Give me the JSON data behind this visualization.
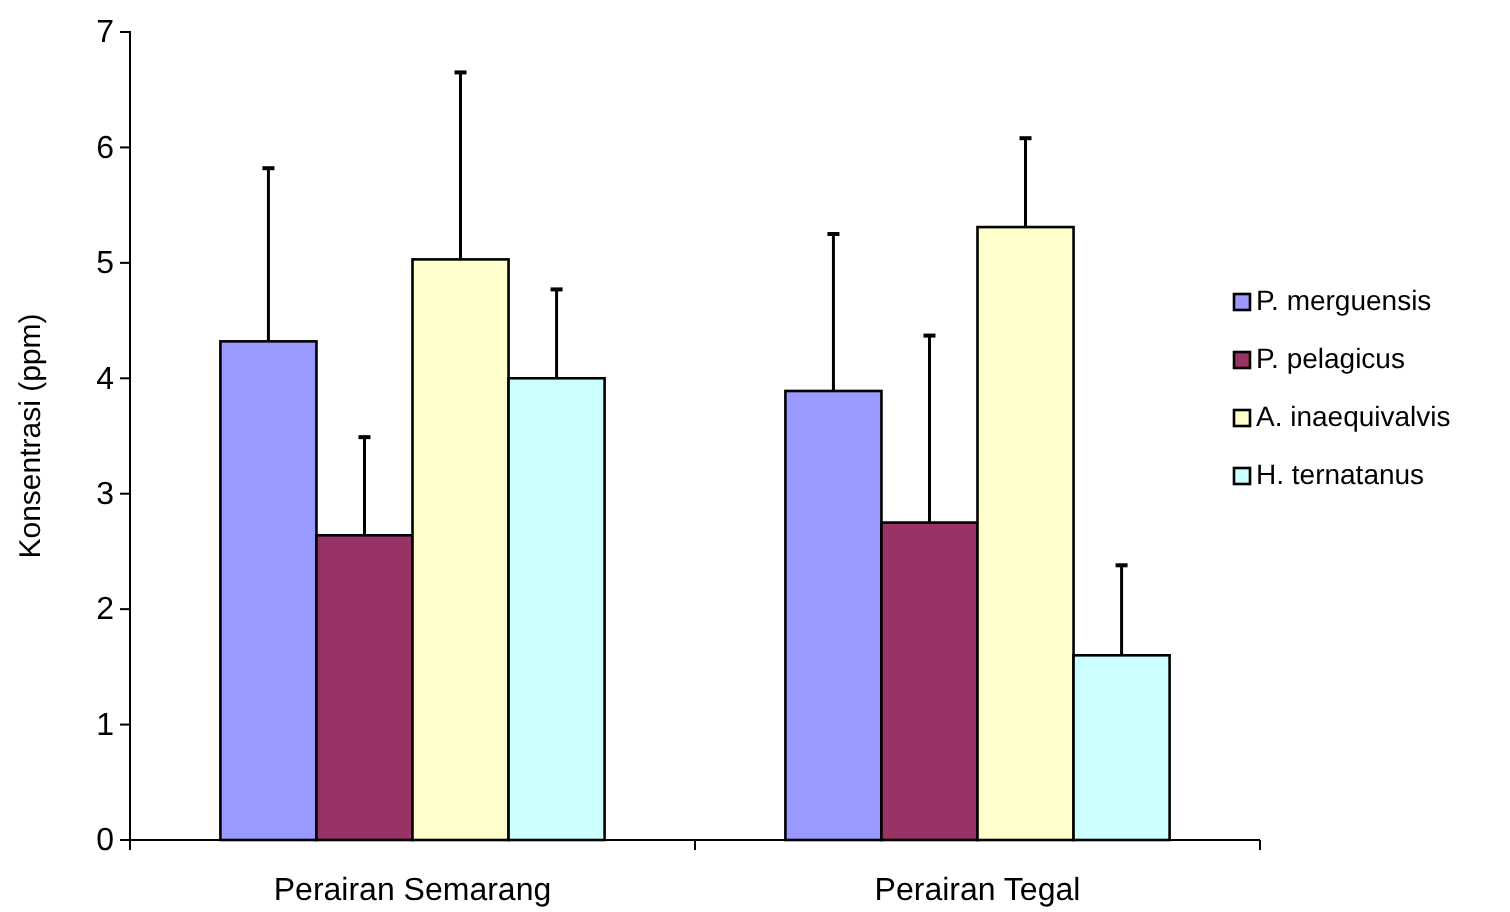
{
  "chart_data": {
    "type": "bar",
    "ylabel": "Konsentrasi (ppm)",
    "categories": [
      "Perairan Semarang",
      "Perairan Tegal"
    ],
    "series": [
      {
        "name": "P. merguensis",
        "color": "#9999ff",
        "values": [
          4.32,
          3.89
        ],
        "errors": [
          [
            4.32,
            5.82
          ],
          [
            3.89,
            5.25
          ]
        ]
      },
      {
        "name": "P. pelagicus",
        "color": "#993366",
        "values": [
          2.64,
          2.75
        ],
        "errors": [
          [
            2.64,
            3.49
          ],
          [
            2.75,
            4.37
          ]
        ]
      },
      {
        "name": "A. inaequivalvis",
        "color": "#ffffcc",
        "values": [
          5.03,
          5.31
        ],
        "errors": [
          [
            5.03,
            6.65
          ],
          [
            5.31,
            6.08
          ]
        ]
      },
      {
        "name": "H. ternatanus",
        "color": "#ccffff",
        "values": [
          4.0,
          1.6
        ],
        "errors": [
          [
            4.0,
            4.77
          ],
          [
            1.6,
            2.38
          ]
        ]
      }
    ],
    "ylim": [
      0,
      7
    ],
    "yticks": [
      0,
      1,
      2,
      3,
      4,
      5,
      6,
      7
    ],
    "grid": false,
    "legend": "right"
  }
}
